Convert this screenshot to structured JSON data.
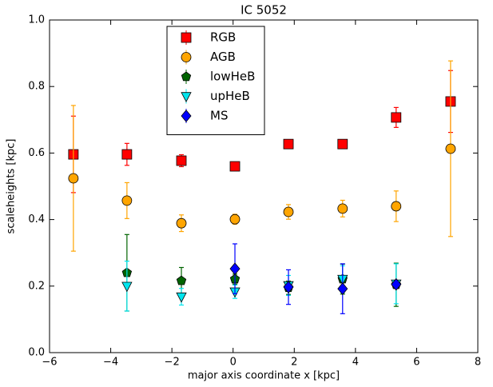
{
  "chart_data": {
    "type": "errorbar-scatter",
    "title": "IC 5052",
    "x_label": "major axis coordinate x [kpc]",
    "y_label": "scaleheights [kpc]",
    "x": [
      -5.22,
      -3.47,
      -1.69,
      0.06,
      1.81,
      3.58,
      5.33,
      7.11
    ],
    "series": [
      {
        "name": "RGB",
        "color": "#ff0000",
        "marker": "square",
        "values": [
          0.596,
          0.596,
          0.577,
          0.56,
          0.627,
          0.627,
          0.707,
          0.755
        ],
        "errors": [
          0.115,
          0.033,
          0.018,
          0.01,
          0.013,
          0.013,
          0.03,
          0.093
        ]
      },
      {
        "name": "AGB",
        "color": "#ffa500",
        "marker": "circle",
        "values": [
          0.524,
          0.457,
          0.389,
          0.401,
          0.423,
          0.433,
          0.44,
          0.613
        ],
        "errors": [
          0.219,
          0.054,
          0.025,
          0.015,
          0.022,
          0.025,
          0.046,
          0.264
        ]
      },
      {
        "name": "lowHeB",
        "color": "#006400",
        "marker": "pentagon",
        "values": [
          null,
          0.24,
          0.216,
          0.221,
          0.195,
          0.221,
          0.204,
          null
        ],
        "errors": [
          null,
          0.115,
          0.04,
          0.015,
          0.02,
          0.045,
          0.065,
          null
        ]
      },
      {
        "name": "upHeB",
        "color": "#00e5ee",
        "marker": "triangle-down",
        "values": [
          null,
          0.2,
          0.168,
          0.183,
          0.202,
          0.221,
          0.207,
          null
        ],
        "errors": [
          null,
          0.075,
          0.025,
          0.02,
          0.03,
          0.04,
          0.06,
          null
        ]
      },
      {
        "name": "MS",
        "color": "#0000ff",
        "marker": "diamond",
        "values": [
          null,
          null,
          null,
          0.252,
          0.197,
          0.192,
          0.205,
          null
        ],
        "errors": [
          null,
          null,
          null,
          0.075,
          0.052,
          0.075,
          0.01,
          null
        ]
      }
    ],
    "xlim": [
      -6,
      8
    ],
    "xticks": [
      {
        "value": -6,
        "label": "−6"
      },
      {
        "value": -4,
        "label": "−4"
      },
      {
        "value": -2,
        "label": "−2"
      },
      0,
      2,
      4,
      6,
      8
    ],
    "ylim": [
      0,
      1
    ],
    "yticks": [
      {
        "value": 0,
        "label": "0.0"
      },
      0.2,
      0.4,
      0.6,
      0.8,
      {
        "value": 1,
        "label": "1.0"
      }
    ],
    "legend": "upper center"
  }
}
